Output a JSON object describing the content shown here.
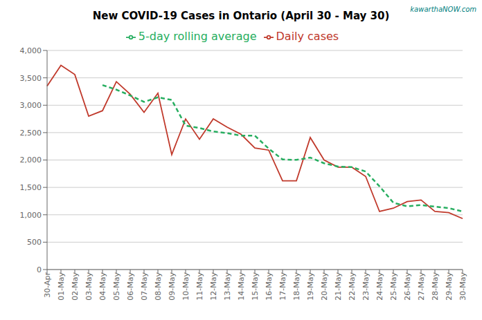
{
  "chart_data": {
    "type": "line",
    "title": "New COVID-19 Cases in Ontario (April 30 - May 30)",
    "annotations": [
      {
        "text": "kawarthaNOW.com"
      }
    ],
    "categories": [
      "30-Apr",
      "01-May",
      "02-May",
      "03-May",
      "04-May",
      "05-May",
      "06-May",
      "07-May",
      "08-May",
      "09-May",
      "10-May",
      "11-May",
      "12-May",
      "13-May",
      "14-May",
      "15-May",
      "16-May",
      "17-May",
      "18-May",
      "19-May",
      "20-May",
      "21-May",
      "22-May",
      "23-May",
      "24-May",
      "25-May",
      "26-May",
      "27-May",
      "28-May",
      "29-May",
      "30-May"
    ],
    "series": [
      {
        "name": "Daily cases",
        "color": "#c0392b",
        "line_style": "solid",
        "values": [
          3350,
          3730,
          3560,
          2800,
          2900,
          3430,
          3200,
          2870,
          3220,
          2100,
          2750,
          2380,
          2750,
          2600,
          2470,
          2220,
          2180,
          1620,
          1620,
          2410,
          2000,
          1870,
          1870,
          1700,
          1060,
          1120,
          1240,
          1270,
          1060,
          1040,
          930
        ]
      },
      {
        "name": "5-day rolling average",
        "color": "#27ae60",
        "line_style": "dashed",
        "values": [
          null,
          null,
          null,
          null,
          3368,
          3284,
          3178,
          3060,
          3144,
          3096,
          2628,
          2584,
          2520,
          2490,
          2444,
          2444,
          2208,
          2010,
          2002,
          2044,
          1940,
          1880,
          1870,
          1790,
          1520,
          1220,
          1154,
          1178,
          1148,
          1122,
          1060
        ]
      }
    ],
    "ylim": [
      0,
      4000
    ],
    "yticks": [
      0,
      500,
      {
        "value": 1000,
        "label": "1,000"
      },
      {
        "value": 1500,
        "label": "1,500"
      },
      {
        "value": 2000,
        "label": "2,000"
      },
      {
        "value": 2500,
        "label": "2,500"
      },
      {
        "value": 3000,
        "label": "3,000"
      },
      {
        "value": 3500,
        "label": "3,500"
      },
      {
        "value": 4000,
        "label": "4,000"
      }
    ],
    "grid": true,
    "legend": "top"
  }
}
